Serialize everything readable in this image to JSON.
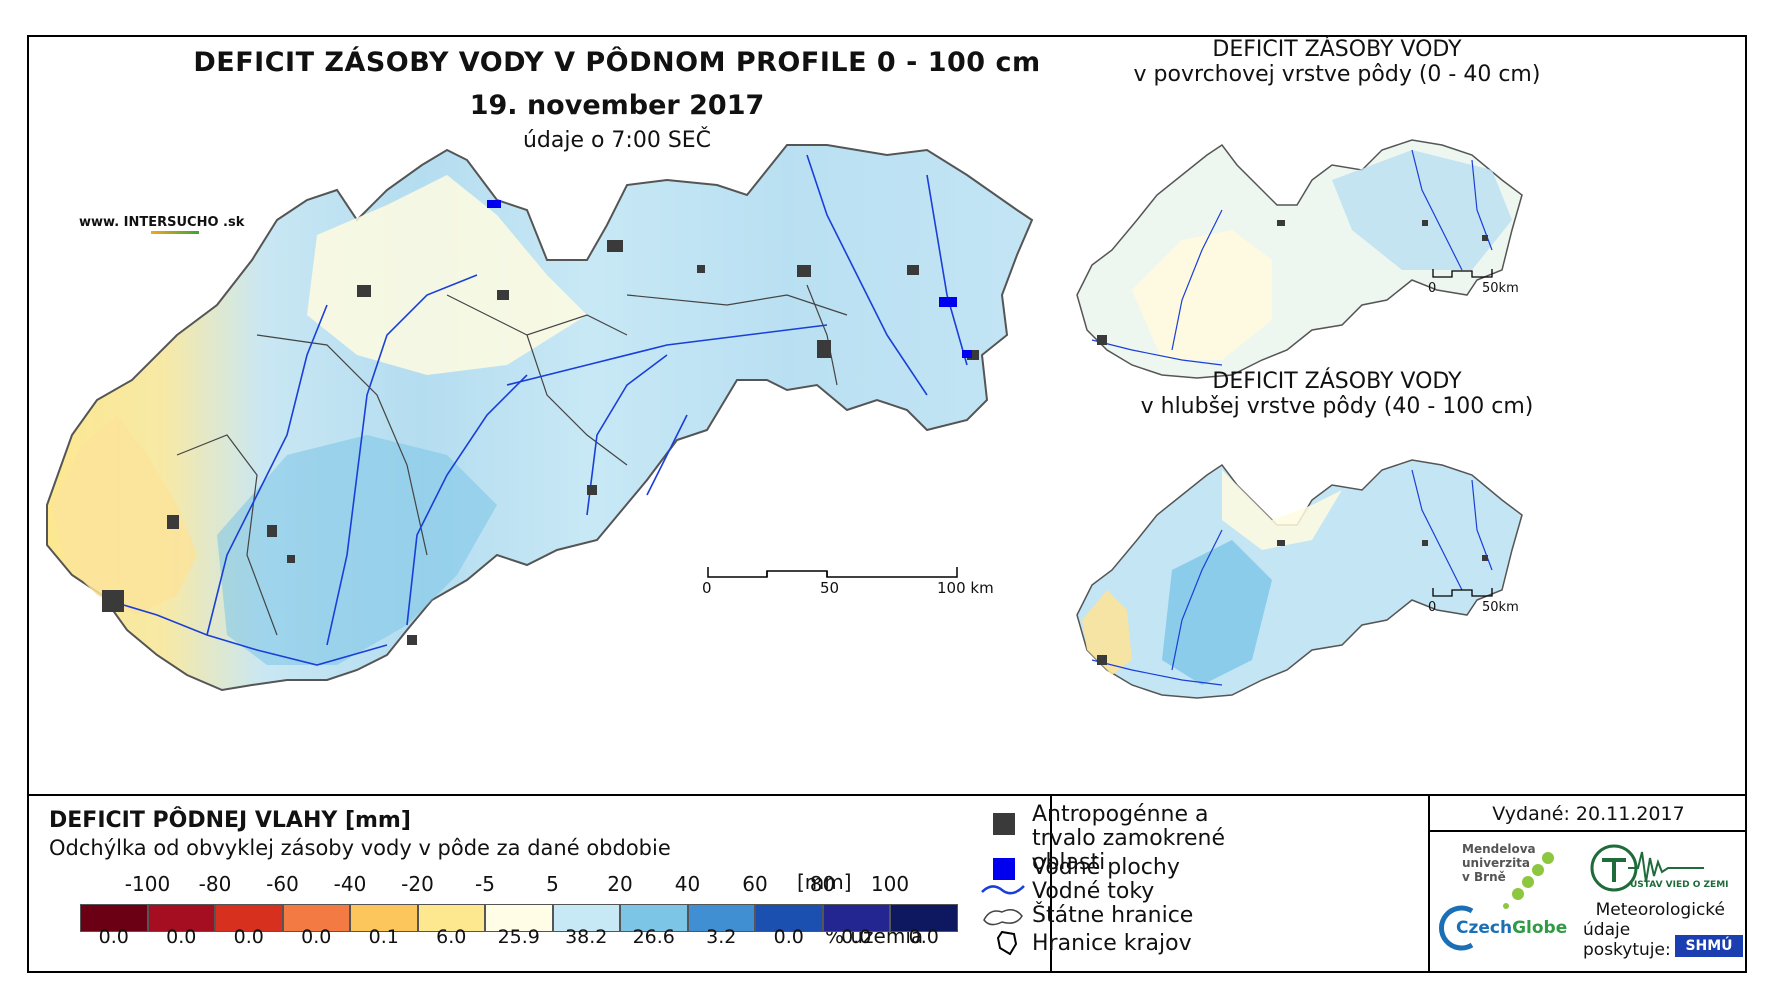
{
  "main_map": {
    "title": "DEFICIT ZÁSOBY VODY V PÔDNOM PROFILE 0 - 100 cm",
    "date": "19. november 2017",
    "time_note": "údaje o 7:00 SEČ",
    "website": "www. INTERSUCHO .sk",
    "scale_labels": [
      "0",
      "50",
      "100 km"
    ]
  },
  "inset_top": {
    "title_line1": "DEFICIT ZÁSOBY VODY",
    "title_line2": "v povrchovej vrstve pôdy (0 - 40 cm)",
    "scale_labels": [
      "0",
      "50km"
    ]
  },
  "inset_bottom": {
    "title_line1": "DEFICIT ZÁSOBY VODY",
    "title_line2": "v hlubšej vrstve pôdy (40 - 100 cm)",
    "scale_labels": [
      "0",
      "50km"
    ]
  },
  "legend": {
    "title": "DEFICIT PÔDNEJ VLAHY [mm]",
    "subtitle": "Odchýlka od obvyklej zásoby vody v pôde za dané obdobie",
    "thresholds": [
      "-100",
      "-80",
      "-60",
      "-40",
      "-20",
      "-5",
      "5",
      "20",
      "40",
      "60",
      "80",
      "100"
    ],
    "unit": "[mm]",
    "colors": [
      "#6b0014",
      "#a50d20",
      "#d7301f",
      "#f47a44",
      "#fdc65d",
      "#fde890",
      "#fffde6",
      "#c7e9f5",
      "#7cc5e6",
      "#3f8fd2",
      "#1b4fb0",
      "#232690",
      "#0d1860"
    ],
    "percentages": [
      "0.0",
      "0.0",
      "0.0",
      "0.0",
      "0.1",
      "6.0",
      "25.9",
      "38.2",
      "26.6",
      "3.2",
      "0.0",
      "0.0",
      "0.0"
    ],
    "percent_label": "% územia"
  },
  "symbols": {
    "anthropogenic": "Antropogénne a trvalo zamokrené oblasti",
    "water_areas": "Vodné plochy",
    "water_courses": "Vodné toky",
    "state_border": "Štátne hranice",
    "region_border": "Hranice krajov"
  },
  "issued": "Vydané: 20.11.2017",
  "logos": {
    "mendel_line1": "Mendelova",
    "mendel_line2": "univerzita",
    "mendel_line3": "v Brně",
    "czechglobe_a": "Czech",
    "czechglobe_b": "Globe",
    "ustav": "ÚSTAV VIED O ZEMI",
    "shmu": "SHMÚ",
    "meteo_line1": "Meteorologické",
    "meteo_line2": "údaje",
    "meteo_line3": "poskytuje:"
  }
}
